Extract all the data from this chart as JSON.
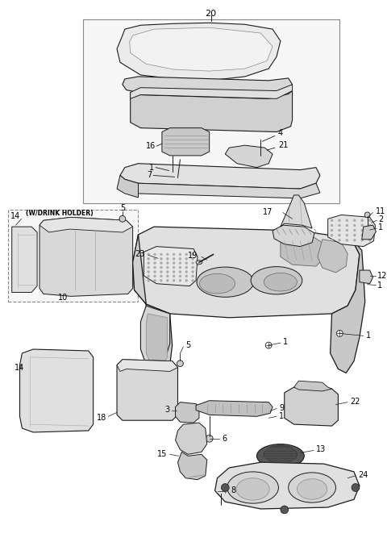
{
  "bg": "#ffffff",
  "lc": "#1a1a1a",
  "fc_light": "#e8e8e8",
  "fc_mid": "#d5d5d5",
  "fc_dark": "#c0c0c0",
  "figsize": [
    4.8,
    6.72
  ],
  "dpi": 100
}
